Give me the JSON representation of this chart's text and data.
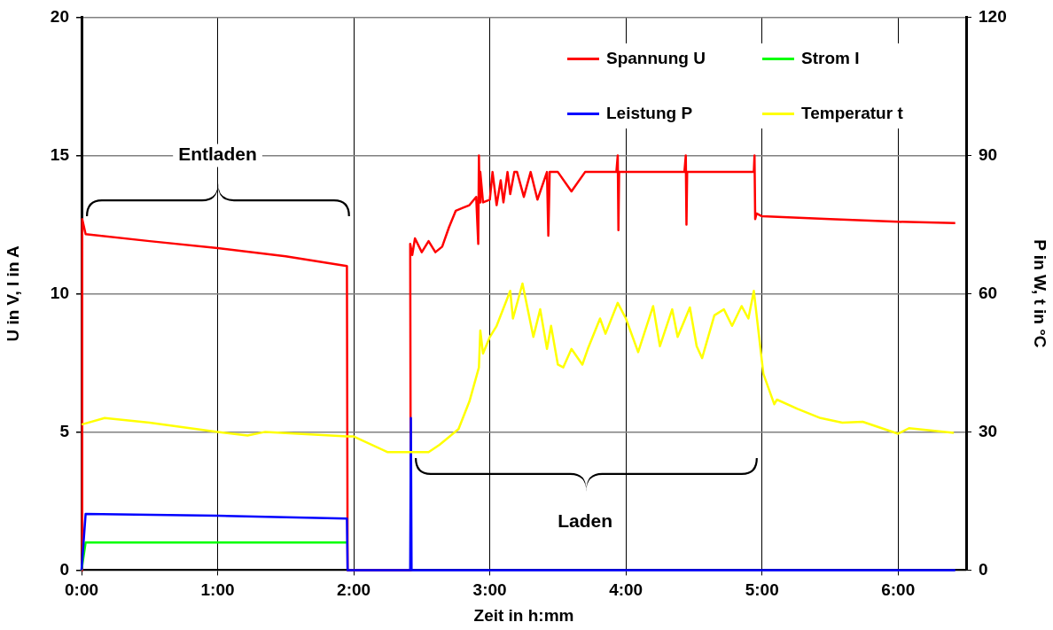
{
  "chart_data": {
    "type": "line",
    "xlabel": "Zeit in h:mm",
    "ylabel": "U in V, I in A",
    "y2label": "P in W, t in °C",
    "xlim": [
      0,
      6.5
    ],
    "xticks": [
      {
        "value": 0,
        "label": "0:00"
      },
      {
        "value": 1,
        "label": "1:00"
      },
      {
        "value": 2,
        "label": "2:00"
      },
      {
        "value": 3,
        "label": "3:00"
      },
      {
        "value": 4,
        "label": "4:00"
      },
      {
        "value": 5,
        "label": "5:00"
      },
      {
        "value": 6,
        "label": "6:00"
      }
    ],
    "ylim": [
      0,
      20
    ],
    "yticks": [
      0,
      5,
      10,
      15,
      20
    ],
    "y2lim": [
      0,
      120
    ],
    "y2ticks": [
      0,
      30,
      60,
      90,
      120
    ],
    "grid": true,
    "legend": "top right",
    "marker": "none",
    "line_style": "solid",
    "annotations": [
      "Entladen",
      "Laden"
    ],
    "series": [
      {
        "name": "Spannung U",
        "color": "#ff0000",
        "x": [
          0,
          0.005,
          0.03,
          0.5,
          1.0,
          1.5,
          1.95,
          1.955,
          2.42,
          2.415,
          2.43,
          2.45,
          2.5,
          2.55,
          2.6,
          2.65,
          2.7,
          2.75,
          2.8,
          2.85,
          2.9,
          2.915,
          2.92,
          2.925,
          2.93,
          2.95,
          3.0,
          3.02,
          3.05,
          3.08,
          3.1,
          3.13,
          3.15,
          3.18,
          3.2,
          3.25,
          3.3,
          3.35,
          3.42,
          3.43,
          3.44,
          3.5,
          3.6,
          3.7,
          3.8,
          3.93,
          3.94,
          3.945,
          3.95,
          4.0,
          4.2,
          4.43,
          4.44,
          4.445,
          4.45,
          4.6,
          4.8,
          4.94,
          4.945,
          4.95,
          4.96,
          5.0,
          5.5,
          6.0,
          6.42
        ],
        "values": [
          0,
          12.7,
          12.15,
          11.9,
          11.65,
          11.35,
          11.0,
          0,
          0,
          11.8,
          11.4,
          12.0,
          11.5,
          11.9,
          11.5,
          11.7,
          12.4,
          13.0,
          13.1,
          13.2,
          13.5,
          11.8,
          15.0,
          13.3,
          14.4,
          13.3,
          13.4,
          14.4,
          13.2,
          14.1,
          13.3,
          14.4,
          13.6,
          14.4,
          14.4,
          13.5,
          14.4,
          13.4,
          14.4,
          12.1,
          14.4,
          14.4,
          13.7,
          14.4,
          14.4,
          14.4,
          15.0,
          12.3,
          14.4,
          14.4,
          14.4,
          14.4,
          15.0,
          12.5,
          14.4,
          14.4,
          14.4,
          14.4,
          15.0,
          12.7,
          12.9,
          12.8,
          12.7,
          12.6,
          12.55
        ]
      },
      {
        "name": "Strom I",
        "color": "#00ff00",
        "x": [
          0,
          0.03,
          1.0,
          1.95
        ],
        "values": [
          0,
          1.0,
          1.0,
          1.0
        ]
      },
      {
        "name": "Leistung P",
        "color": "#0000ff",
        "axis": "y2",
        "x": [
          0,
          0.03,
          1.0,
          1.95,
          1.955,
          2.415,
          2.42,
          2.425,
          6.42
        ],
        "values": [
          0,
          12.2,
          11.8,
          11.2,
          0,
          0,
          33,
          0,
          0
        ]
      },
      {
        "name": "Temperatur t",
        "color": "#ffff00",
        "axis": "y2",
        "x": [
          0,
          0.17,
          0.5,
          1.0,
          1.22,
          1.35,
          1.95,
          2.0,
          2.25,
          2.55,
          2.63,
          2.77,
          2.85,
          2.92,
          2.93,
          2.95,
          3.0,
          3.05,
          3.15,
          3.17,
          3.24,
          3.32,
          3.37,
          3.42,
          3.45,
          3.5,
          3.54,
          3.6,
          3.68,
          3.72,
          3.81,
          3.85,
          3.94,
          4.0,
          4.09,
          4.2,
          4.25,
          4.34,
          4.38,
          4.47,
          4.52,
          4.56,
          4.65,
          4.72,
          4.78,
          4.85,
          4.9,
          4.94,
          5.01,
          5.09,
          5.11,
          5.26,
          5.43,
          5.59,
          5.74,
          6.0,
          6.08,
          6.41
        ],
        "values": [
          31.6,
          33,
          32,
          30,
          29.2,
          30,
          29,
          29,
          25.6,
          25.6,
          27.2,
          30.6,
          36.6,
          44,
          52,
          47,
          50.6,
          53,
          60.6,
          54.6,
          62.2,
          50.6,
          56.6,
          48,
          53,
          44.6,
          44,
          48,
          44.6,
          48,
          54.6,
          51.3,
          58,
          54.6,
          47.3,
          57.3,
          48.6,
          56.6,
          50.6,
          57,
          48.6,
          46,
          55.3,
          56.6,
          53,
          57.3,
          54.6,
          60.6,
          42.6,
          36,
          37,
          35,
          33,
          32,
          32.2,
          29.6,
          30.8,
          29.8
        ]
      }
    ]
  }
}
